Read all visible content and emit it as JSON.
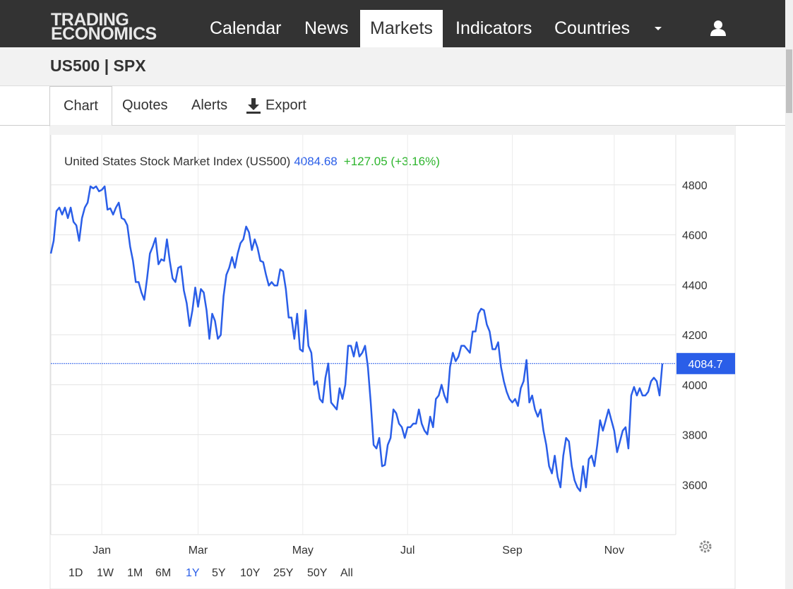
{
  "logo": [
    "TRADING",
    "ECONOMICS"
  ],
  "nav": [
    "Calendar",
    "News",
    "Markets",
    "Indicators",
    "Countries"
  ],
  "symbol_title": "US500 | SPX",
  "tabs": [
    "Chart",
    "Quotes",
    "Alerts",
    "Export"
  ],
  "ranges": [
    "1D",
    "1W",
    "1M",
    "6M",
    "1Y",
    "5Y",
    "10Y",
    "25Y",
    "50Y",
    "All"
  ],
  "chart_data": {
    "type": "line",
    "legend": {
      "name": "United States Stock Market Index (US500)",
      "price": "4084.68",
      "change": "+127.05 (+3.16%)"
    },
    "color": "#2a5ee8",
    "ylim": [
      3400,
      5000
    ],
    "yticks": [
      3600,
      3800,
      4000,
      4200,
      4400,
      4600,
      4800
    ],
    "grid": true,
    "price_line": {
      "value": 4084.68,
      "label": "4084.7"
    },
    "categories": [
      null,
      null,
      null,
      null,
      null,
      null,
      null,
      null,
      null,
      null,
      null,
      null,
      null,
      null,
      null,
      null,
      null,
      null,
      "Jan",
      null,
      null,
      null,
      null,
      null,
      null,
      null,
      null,
      null,
      null,
      null,
      null,
      null,
      null,
      null,
      null,
      null,
      null,
      null,
      null,
      null,
      null,
      null,
      null,
      null,
      null,
      null,
      null,
      null,
      null,
      null,
      null,
      null,
      "Mar",
      null,
      null,
      null,
      null,
      null,
      null,
      null,
      null,
      null,
      null,
      null,
      null,
      null,
      null,
      null,
      null,
      null,
      null,
      null,
      null,
      null,
      null,
      null,
      null,
      null,
      null,
      null,
      null,
      null,
      null,
      null,
      null,
      null,
      null,
      null,
      null,
      "May",
      null,
      null,
      null,
      null,
      null,
      null,
      null,
      null,
      null,
      null,
      null,
      null,
      null,
      null,
      null,
      null,
      null,
      null,
      null,
      null,
      null,
      null,
      null,
      null,
      null,
      null,
      null,
      null,
      null,
      null,
      null,
      null,
      null,
      null,
      null,
      null,
      "Jul",
      null,
      null,
      null,
      null,
      null,
      null,
      null,
      null,
      null,
      null,
      null,
      null,
      null,
      null,
      null,
      null,
      null,
      null,
      null,
      null,
      null,
      null,
      null,
      null,
      null,
      null,
      null,
      null,
      null,
      null,
      null,
      null,
      null,
      null,
      null,
      null,
      "Sep",
      null,
      null,
      null,
      null,
      null,
      null,
      null,
      null,
      null,
      null,
      null,
      null,
      null,
      null,
      null,
      null,
      null,
      null,
      null,
      null,
      null,
      null,
      null,
      null,
      null,
      null,
      null,
      null,
      null,
      null,
      null,
      null,
      null,
      null,
      null,
      "Nov",
      null,
      null,
      null,
      null,
      null,
      null,
      null,
      null,
      null,
      null,
      null,
      null,
      null,
      null,
      null,
      null,
      null
    ],
    "values": [
      4525,
      4576,
      4695,
      4709,
      4681,
      4709,
      4667,
      4709,
      4652,
      4638,
      4576,
      4667,
      4709,
      4729,
      4794,
      4786,
      4794,
      4774,
      4780,
      4794,
      4701,
      4706,
      4681,
      4709,
      4729,
      4667,
      4661,
      4638,
      4553,
      4496,
      4411,
      4411,
      4369,
      4340,
      4426,
      4525,
      4553,
      4587,
      4482,
      4502,
      4496,
      4582,
      4496,
      4426,
      4411,
      4468,
      4474,
      4377,
      4326,
      4235,
      4298,
      4389,
      4312,
      4383,
      4369,
      4298,
      4184,
      4284,
      4255,
      4184,
      4199,
      4355,
      4440,
      4468,
      4511,
      4468,
      4525,
      4567,
      4582,
      4633,
      4610,
      4539,
      4582,
      4548,
      4496,
      4491,
      4440,
      4397,
      4411,
      4397,
      4397,
      4462,
      4454,
      4383,
      4269,
      4269,
      4184,
      4284,
      4142,
      4133,
      4298,
      4156,
      4128,
      4000,
      4014,
      3943,
      3929,
      4028,
      4085,
      3929,
      3915,
      3901,
      3986,
      3943,
      4000,
      4156,
      4156,
      4113,
      4170,
      4113,
      4128,
      4156,
      4071,
      3929,
      3759,
      3745,
      3787,
      3674,
      3679,
      3759,
      3787,
      3901,
      3886,
      3844,
      3830,
      3787,
      3830,
      3830,
      3844,
      3844,
      3901,
      3844,
      3816,
      3801,
      3872,
      3830,
      3943,
      3957,
      4000,
      3957,
      3929,
      4071,
      4128,
      4094,
      4113,
      4156,
      4156,
      4142,
      4128,
      4213,
      4213,
      4284,
      4304,
      4298,
      4241,
      4213,
      4142,
      4142,
      4170,
      4071,
      4014,
      3972,
      3943,
      3929,
      3943,
      3915,
      3986,
      4014,
      4099,
      3929,
      3957,
      3901,
      3872,
      3901,
      3816,
      3759,
      3674,
      3645,
      3716,
      3631,
      3589,
      3716,
      3787,
      3773,
      3674,
      3617,
      3589,
      3574,
      3674,
      3589,
      3702,
      3716,
      3674,
      3759,
      3858,
      3816,
      3858,
      3901,
      3858,
      3816,
      3730,
      3773,
      3816,
      3830,
      3745,
      3957,
      3991,
      3957,
      3986,
      3957,
      3957,
      3972,
      4014,
      4028,
      4014,
      3957,
      4084.68
    ]
  }
}
